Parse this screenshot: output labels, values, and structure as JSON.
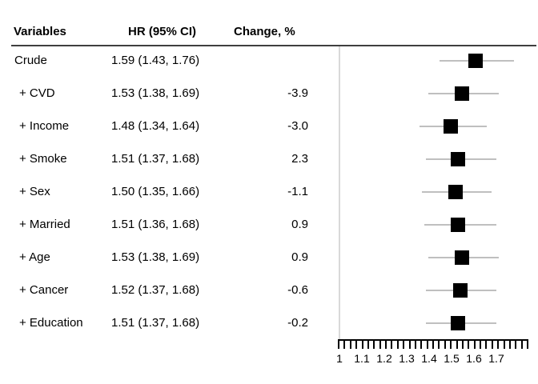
{
  "table": {
    "headers": {
      "variables": "Variables",
      "hr_ci": "HR (95% CI)",
      "change": "Change, %"
    },
    "rows": [
      {
        "variable": "Crude",
        "hr_ci": "1.59 (1.43, 1.76)",
        "change": ""
      },
      {
        "variable": "+ CVD",
        "hr_ci": "1.53 (1.38, 1.69)",
        "change": "-3.9"
      },
      {
        "variable": "+ Income",
        "hr_ci": "1.48 (1.34, 1.64)",
        "change": "-3.0"
      },
      {
        "variable": "+ Smoke",
        "hr_ci": "1.51 (1.37, 1.68)",
        "change": "2.3"
      },
      {
        "variable": "+ Sex",
        "hr_ci": "1.50 (1.35, 1.66)",
        "change": "-1.1"
      },
      {
        "variable": "+ Married",
        "hr_ci": "1.51 (1.36, 1.68)",
        "change": "0.9"
      },
      {
        "variable": "+ Age",
        "hr_ci": "1.53 (1.38, 1.69)",
        "change": "0.9"
      },
      {
        "variable": "+ Cancer",
        "hr_ci": "1.52 (1.37, 1.68)",
        "change": "-0.6"
      },
      {
        "variable": "+ Education",
        "hr_ci": "1.51 (1.37, 1.68)",
        "change": "-0.2"
      }
    ]
  },
  "chart_data": {
    "type": "scatter",
    "subtype": "forest-plot",
    "title": "",
    "xlabel": "HR (95% CI)",
    "ylabel": "",
    "xlim": [
      0.98,
      1.82
    ],
    "grid": false,
    "legend_position": "none",
    "reference_line_x": 1.0,
    "marker_shape": "square",
    "x_tick_labels": [
      "1",
      "1.1",
      "1.2",
      "1.3",
      "1.4",
      "1.5",
      "1.6",
      "1.7"
    ],
    "x_tick_values": [
      1.0,
      1.1,
      1.2,
      1.3,
      1.4,
      1.5,
      1.6,
      1.7
    ],
    "points": [
      {
        "label": "Crude",
        "hr": 1.59,
        "ci_low": 1.43,
        "ci_high": 1.76,
        "change_pct": null
      },
      {
        "label": "+ CVD",
        "hr": 1.53,
        "ci_low": 1.38,
        "ci_high": 1.69,
        "change_pct": -3.9
      },
      {
        "label": "+ Income",
        "hr": 1.48,
        "ci_low": 1.34,
        "ci_high": 1.64,
        "change_pct": -3.0
      },
      {
        "label": "+ Smoke",
        "hr": 1.51,
        "ci_low": 1.37,
        "ci_high": 1.68,
        "change_pct": 2.3
      },
      {
        "label": "+ Sex",
        "hr": 1.5,
        "ci_low": 1.35,
        "ci_high": 1.66,
        "change_pct": -1.1
      },
      {
        "label": "+ Married",
        "hr": 1.51,
        "ci_low": 1.36,
        "ci_high": 1.68,
        "change_pct": 0.9
      },
      {
        "label": "+ Age",
        "hr": 1.53,
        "ci_low": 1.38,
        "ci_high": 1.69,
        "change_pct": 0.9
      },
      {
        "label": "+ Cancer",
        "hr": 1.52,
        "ci_low": 1.37,
        "ci_high": 1.68,
        "change_pct": -0.6
      },
      {
        "label": "+ Education",
        "hr": 1.51,
        "ci_low": 1.37,
        "ci_high": 1.68,
        "change_pct": -0.2
      }
    ]
  },
  "colors": {
    "marker": "#000000",
    "ci_line": "#bfbfbf",
    "reference_line": "#d9d9d9",
    "header_rule": "#3f3f3f",
    "text": "#000000",
    "background": "#ffffff"
  }
}
